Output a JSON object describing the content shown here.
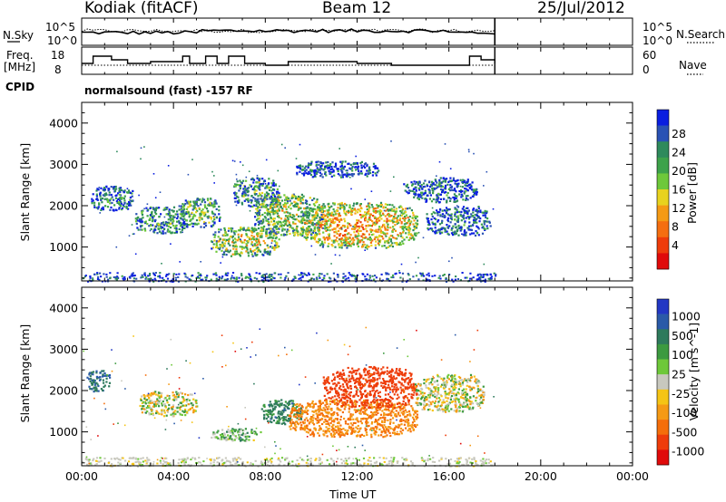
{
  "header": {
    "station": "Kodiak (fitACF)",
    "beam": "Beam 12",
    "date": "25/Jul/2012"
  },
  "top_panels": {
    "nsky_label": "N.Sky",
    "nsky_ticks": [
      "10^5",
      "10^0"
    ],
    "nsearch_label": "N.Search",
    "nsearch_ticks": [
      "10^5",
      "10^0"
    ],
    "freq_label": "Freq.",
    "freq_unit": "[MHz]",
    "freq_ticks": [
      "18",
      "8"
    ],
    "nave_label": "Nave",
    "nave_ticks": [
      "60",
      "0"
    ],
    "cpid_label": "CPID",
    "cpid_value": "normalsound (fast) -157 RF"
  },
  "x_axis": {
    "label": "Time UT",
    "ticks": [
      "00:00",
      "04:00",
      "08:00",
      "12:00",
      "16:00",
      "20:00",
      "00:00"
    ]
  },
  "colors": {
    "power_scale": [
      "#0a1ee0",
      "#2a52b4",
      "#2e8a5c",
      "#3da24a",
      "#6ec83a",
      "#e8d21e",
      "#f59a14",
      "#f56e10",
      "#ee3c0a",
      "#e00a0a"
    ],
    "velocity_scale": [
      "#2237c4",
      "#2a5aa8",
      "#2e7a5c",
      "#3c9a40",
      "#6ec83a",
      "#c8c8be",
      "#f5c414",
      "#f59a14",
      "#f56e0a",
      "#ee3c0a",
      "#e00a0a"
    ]
  },
  "chart_data": [
    {
      "type": "heatmap",
      "title": "",
      "xlabel": "Time UT",
      "ylabel": "Slant Range [km]",
      "xlim": [
        0,
        24
      ],
      "ylim": [
        180,
        4500
      ],
      "yticks": [
        "1000",
        "2000",
        "3000",
        "4000"
      ],
      "colorbar_label": "Power [dB]",
      "colorbar_ticks": [
        "4",
        "8",
        "12",
        "16",
        "20",
        "24",
        "28"
      ],
      "data_end_hour": 18,
      "echo_regions": [
        {
          "t": [
            0.4,
            2.2
          ],
          "r": [
            1900,
            2500
          ],
          "level": 0.25
        },
        {
          "t": [
            2.3,
            4.6
          ],
          "r": [
            1350,
            2000
          ],
          "level": 0.3
        },
        {
          "t": [
            4.2,
            6.0
          ],
          "r": [
            1500,
            2200
          ],
          "level": 0.4
        },
        {
          "t": [
            5.6,
            8.6
          ],
          "r": [
            800,
            1500
          ],
          "level": 0.55
        },
        {
          "t": [
            6.6,
            8.6
          ],
          "r": [
            2000,
            2700
          ],
          "level": 0.35
        },
        {
          "t": [
            7.5,
            10.5
          ],
          "r": [
            1300,
            2300
          ],
          "level": 0.5
        },
        {
          "t": [
            9.5,
            14.6
          ],
          "r": [
            1000,
            2100
          ],
          "level": 0.7
        },
        {
          "t": [
            9.3,
            13.0
          ],
          "r": [
            2700,
            3100
          ],
          "level": 0.15
        },
        {
          "t": [
            14.0,
            17.2
          ],
          "r": [
            2100,
            2700
          ],
          "level": 0.2
        },
        {
          "t": [
            15.0,
            17.8
          ],
          "r": [
            1300,
            2000
          ],
          "level": 0.2
        },
        {
          "t": [
            0.0,
            18.0
          ],
          "r": [
            180,
            400
          ],
          "level": 0.15
        }
      ]
    },
    {
      "type": "heatmap",
      "title": "",
      "xlabel": "Time UT",
      "ylabel": "Slant Range [km]",
      "xlim": [
        0,
        24
      ],
      "ylim": [
        180,
        4500
      ],
      "yticks": [
        "1000",
        "2000",
        "3000",
        "4000"
      ],
      "colorbar_label": "Velocity [m s^-1]",
      "colorbar_ticks": [
        "1000",
        "500",
        "100",
        "25",
        "-25",
        "-100",
        "-500",
        "-1000"
      ],
      "data_end_hour": 18,
      "echo_regions": [
        {
          "t": [
            0.2,
            1.2
          ],
          "r": [
            2000,
            2500
          ],
          "velocity": 300
        },
        {
          "t": [
            2.5,
            5.0
          ],
          "r": [
            1400,
            2000
          ],
          "velocity": 0
        },
        {
          "t": [
            5.6,
            7.8
          ],
          "r": [
            800,
            1100
          ],
          "velocity": 80
        },
        {
          "t": [
            7.8,
            9.6
          ],
          "r": [
            1200,
            1800
          ],
          "velocity": 200
        },
        {
          "t": [
            9.0,
            14.6
          ],
          "r": [
            900,
            1800
          ],
          "velocity": -200
        },
        {
          "t": [
            10.5,
            14.6
          ],
          "r": [
            1600,
            2600
          ],
          "velocity": -600
        },
        {
          "t": [
            14.5,
            17.5
          ],
          "r": [
            1500,
            2400
          ],
          "velocity": 0
        },
        {
          "t": [
            0.0,
            18.0
          ],
          "r": [
            180,
            400
          ],
          "velocity": 0
        }
      ]
    }
  ]
}
